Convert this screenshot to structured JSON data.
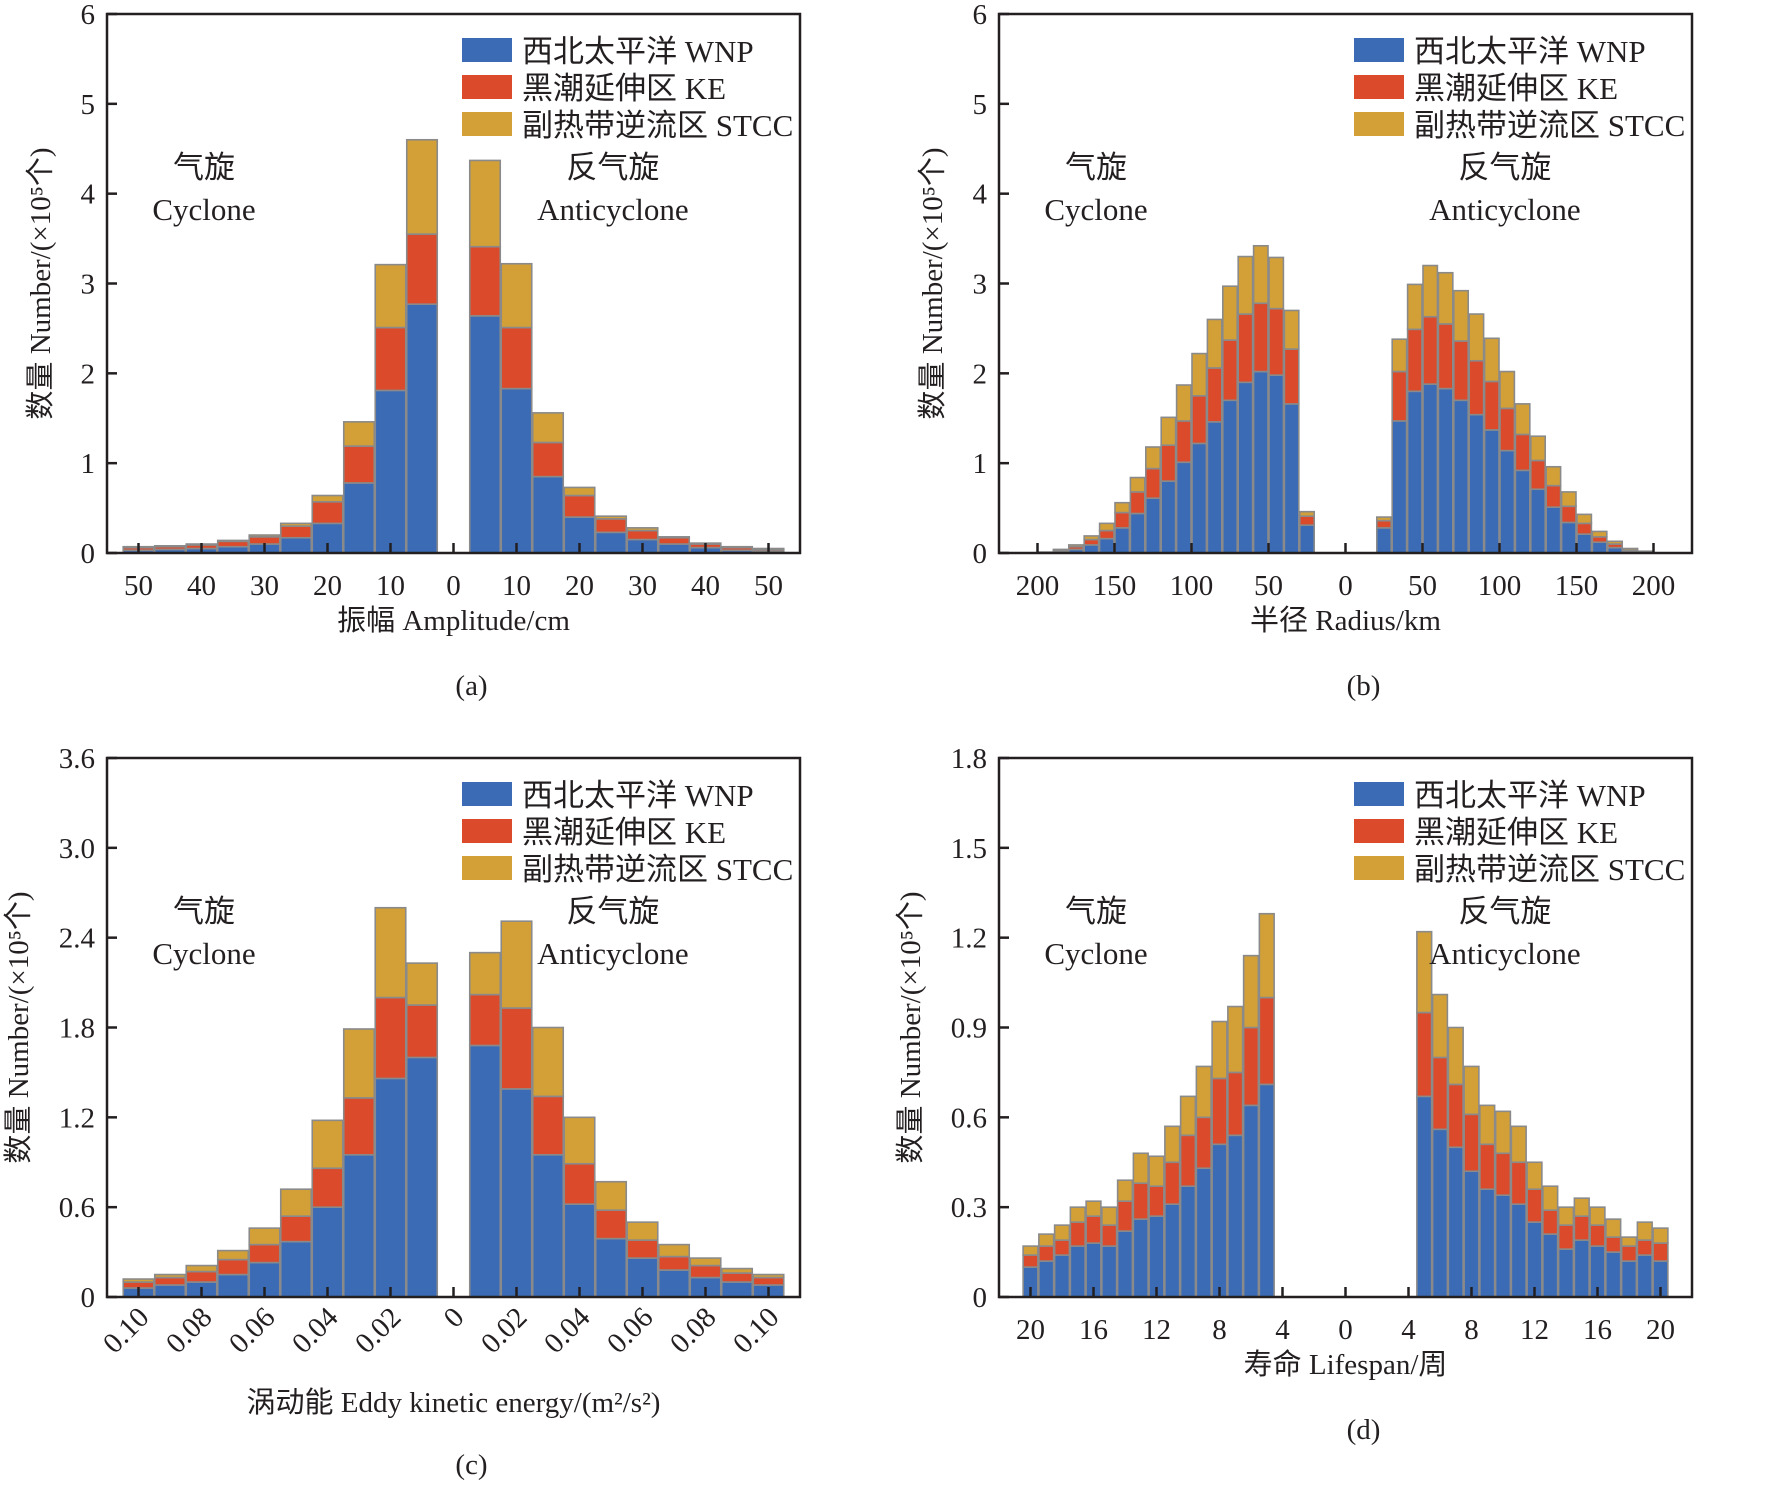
{
  "legend": [
    {
      "label": "西北太平洋 WNP",
      "color": "#3b6bb5"
    },
    {
      "label": "黑潮延伸区 KE",
      "color": "#db4a2b"
    },
    {
      "label": "副热带逆流区 STCC",
      "color": "#d3a037"
    }
  ],
  "edge_color": "#8a8a8a",
  "annotations": {
    "cyclone_cn": "气旋",
    "cyclone_en": "Cyclone",
    "anticyclone_cn": "反气旋",
    "anticyclone_en": "Anticyclone"
  },
  "ylabel": "数量 Number/(×10⁵个)",
  "chart_data": [
    {
      "id": "a",
      "type": "bar",
      "stacked": true,
      "caption": "(a)",
      "title": "",
      "xlabel": "振幅 Amplitude/cm",
      "ylabel": "数量 Number/(×10⁵个)",
      "ylim": [
        0,
        6
      ],
      "yticks": [
        0,
        1,
        2,
        3,
        4,
        5,
        6
      ],
      "ytick_labels": [
        "0",
        "1",
        "2",
        "3",
        "4",
        "5",
        "6"
      ],
      "xlim": [
        -55,
        55
      ],
      "xticks": [
        -50,
        -40,
        -30,
        -20,
        -10,
        0,
        10,
        20,
        30,
        40,
        50
      ],
      "xtick_labels": [
        "50",
        "40",
        "30",
        "20",
        "10",
        "0",
        "10",
        "20",
        "30",
        "40",
        "50"
      ],
      "xtick_rotate": false,
      "bin_width": 5,
      "legend_position": "top-right",
      "cyclone": {
        "x": [
          -50,
          -45,
          -40,
          -35,
          -30,
          -25,
          -20,
          -15,
          -10,
          -5
        ],
        "series": [
          {
            "name": "西北太平洋 WNP",
            "values": [
              0.03,
              0.04,
              0.05,
              0.07,
              0.1,
              0.17,
              0.33,
              0.78,
              1.81,
              2.77
            ]
          },
          {
            "name": "黑潮延伸区 KE",
            "values": [
              0.03,
              0.03,
              0.04,
              0.06,
              0.08,
              0.13,
              0.24,
              0.41,
              0.7,
              0.78
            ]
          },
          {
            "name": "副热带逆流区 STCC",
            "values": [
              0.01,
              0.01,
              0.01,
              0.01,
              0.02,
              0.03,
              0.07,
              0.27,
              0.7,
              1.05
            ]
          }
        ]
      },
      "anticyclone": {
        "x": [
          5,
          10,
          15,
          20,
          25,
          30,
          35,
          40,
          45,
          50
        ],
        "series": [
          {
            "name": "西北太平洋 WNP",
            "values": [
              2.64,
              1.83,
              0.85,
              0.4,
              0.23,
              0.15,
              0.1,
              0.06,
              0.03,
              0.02
            ]
          },
          {
            "name": "黑潮延伸区 KE",
            "values": [
              0.77,
              0.68,
              0.38,
              0.24,
              0.15,
              0.1,
              0.07,
              0.04,
              0.03,
              0.02
            ]
          },
          {
            "name": "副热带逆流区 STCC",
            "values": [
              0.96,
              0.71,
              0.33,
              0.09,
              0.03,
              0.03,
              0.01,
              0.01,
              0.01,
              0.01
            ]
          }
        ]
      }
    },
    {
      "id": "b",
      "type": "bar",
      "stacked": true,
      "caption": "(b)",
      "title": "",
      "xlabel": "半径 Radius/km",
      "ylabel": "数量 Number/(×10⁵个)",
      "ylim": [
        0,
        6
      ],
      "yticks": [
        0,
        1,
        2,
        3,
        4,
        5,
        6
      ],
      "ytick_labels": [
        "0",
        "1",
        "2",
        "3",
        "4",
        "5",
        "6"
      ],
      "xlim": [
        -225,
        225
      ],
      "xticks": [
        -200,
        -150,
        -100,
        -50,
        0,
        50,
        100,
        150,
        200
      ],
      "xtick_labels": [
        "200",
        "150",
        "100",
        "50",
        "0",
        "50",
        "100",
        "150",
        "200"
      ],
      "xtick_rotate": false,
      "bin_width": 10,
      "legend_position": "top-right",
      "cyclone": {
        "x": [
          -195,
          -185,
          -175,
          -165,
          -155,
          -145,
          -135,
          -125,
          -115,
          -105,
          -95,
          -85,
          -75,
          -65,
          -55,
          -45,
          -35
        ],
        "series": [
          {
            "name": "西北太平洋 WNP",
            "values": [
              0.01,
              0.02,
              0.04,
              0.09,
              0.16,
              0.28,
              0.44,
              0.61,
              0.8,
              1.01,
              1.22,
              1.46,
              1.7,
              1.9,
              2.02,
              1.98,
              1.66
            ]
          },
          {
            "name": "黑潮延伸区 KE",
            "values": [
              0.0,
              0.01,
              0.03,
              0.06,
              0.09,
              0.17,
              0.24,
              0.33,
              0.4,
              0.46,
              0.53,
              0.6,
              0.67,
              0.76,
              0.76,
              0.74,
              0.61
            ]
          },
          {
            "name": "副热带逆流区 STCC",
            "values": [
              0.0,
              0.01,
              0.02,
              0.04,
              0.08,
              0.11,
              0.16,
              0.24,
              0.31,
              0.4,
              0.47,
              0.54,
              0.6,
              0.64,
              0.64,
              0.57,
              0.43
            ]
          }
        ]
      },
      "extra_cyclone": {
        "x": -25,
        "values": [
          0.31,
          0.1,
          0.05
        ]
      },
      "anticyclone": {
        "x": [
          25,
          35,
          45,
          55,
          65,
          75,
          85,
          95,
          105,
          115,
          125,
          135,
          145,
          155,
          165,
          175,
          185,
          195
        ],
        "series": [
          {
            "name": "西北太平洋 WNP",
            "values": [
              0.28,
              1.47,
              1.8,
              1.88,
              1.83,
              1.7,
              1.54,
              1.37,
              1.14,
              0.92,
              0.71,
              0.51,
              0.34,
              0.21,
              0.12,
              0.06,
              0.02,
              0.01
            ]
          },
          {
            "name": "黑潮延伸区 KE",
            "values": [
              0.08,
              0.55,
              0.69,
              0.75,
              0.72,
              0.66,
              0.6,
              0.54,
              0.47,
              0.4,
              0.32,
              0.24,
              0.18,
              0.12,
              0.06,
              0.04,
              0.01,
              0.0
            ]
          },
          {
            "name": "副热带逆流区 STCC",
            "values": [
              0.04,
              0.36,
              0.5,
              0.57,
              0.57,
              0.56,
              0.52,
              0.48,
              0.41,
              0.34,
              0.27,
              0.21,
              0.16,
              0.1,
              0.06,
              0.03,
              0.02,
              0.01
            ]
          }
        ]
      }
    },
    {
      "id": "c",
      "type": "bar",
      "stacked": true,
      "caption": "(c)",
      "title": "",
      "xlabel": "涡动能 Eddy kinetic energy/(m²/s²)",
      "ylabel": "数量 Number/(×10⁵个)",
      "ylim": [
        0,
        3.6
      ],
      "yticks": [
        0,
        0.6,
        1.2,
        1.8,
        2.4,
        3.0,
        3.6
      ],
      "ytick_labels": [
        "0",
        "0.6",
        "1.2",
        "1.8",
        "2.4",
        "3.0",
        "3.6"
      ],
      "xlim": [
        -0.11,
        0.11
      ],
      "xticks": [
        -0.1,
        -0.08,
        -0.06,
        -0.04,
        -0.02,
        0,
        0.02,
        0.04,
        0.06,
        0.08,
        0.1
      ],
      "xtick_labels": [
        "0.10",
        "0.08",
        "0.06",
        "0.04",
        "0.02",
        "0",
        "0.02",
        "0.04",
        "0.06",
        "0.08",
        "0.10"
      ],
      "xtick_rotate": true,
      "bin_width": 0.01,
      "legend_position": "top-right",
      "cyclone": {
        "x": [
          -0.1,
          -0.09,
          -0.08,
          -0.07,
          -0.06,
          -0.05,
          -0.04,
          -0.03,
          -0.02,
          -0.01
        ],
        "series": [
          {
            "name": "西北太平洋 WNP",
            "values": [
              0.06,
              0.08,
              0.1,
              0.15,
              0.23,
              0.37,
              0.6,
              0.95,
              1.46,
              1.6
            ]
          },
          {
            "name": "黑潮延伸区 KE",
            "values": [
              0.04,
              0.05,
              0.07,
              0.1,
              0.12,
              0.17,
              0.26,
              0.38,
              0.54,
              0.35
            ]
          },
          {
            "name": "副热带逆流区 STCC",
            "values": [
              0.02,
              0.02,
              0.04,
              0.06,
              0.11,
              0.18,
              0.32,
              0.46,
              0.6,
              0.28
            ]
          }
        ]
      },
      "anticyclone": {
        "x": [
          0.01,
          0.02,
          0.03,
          0.04,
          0.05,
          0.06,
          0.07,
          0.08,
          0.09,
          0.1
        ],
        "series": [
          {
            "name": "西北太平洋 WNP",
            "values": [
              1.68,
              1.39,
              0.95,
              0.62,
              0.39,
              0.26,
              0.18,
              0.13,
              0.1,
              0.08
            ]
          },
          {
            "name": "黑潮延伸区 KE",
            "values": [
              0.34,
              0.54,
              0.39,
              0.27,
              0.19,
              0.12,
              0.09,
              0.08,
              0.06,
              0.05
            ]
          },
          {
            "name": "副热带逆流区 STCC",
            "values": [
              0.28,
              0.58,
              0.46,
              0.31,
              0.19,
              0.12,
              0.08,
              0.05,
              0.03,
              0.02
            ]
          }
        ]
      }
    },
    {
      "id": "d",
      "type": "bar",
      "stacked": true,
      "caption": "(d)",
      "title": "",
      "xlabel": "寿命 Lifespan/周",
      "ylabel": "数量 Number/(×10⁵个)",
      "ylim": [
        0,
        1.8
      ],
      "yticks": [
        0,
        0.3,
        0.6,
        0.9,
        1.2,
        1.5,
        1.8
      ],
      "ytick_labels": [
        "0",
        "0.3",
        "0.6",
        "0.9",
        "1.2",
        "1.5",
        "1.8"
      ],
      "xlim": [
        -22,
        22
      ],
      "xticks": [
        -20,
        -16,
        -12,
        -8,
        -4,
        0,
        4,
        8,
        12,
        16,
        20
      ],
      "xtick_labels": [
        "20",
        "16",
        "12",
        "8",
        "4",
        "0",
        "4",
        "8",
        "12",
        "16",
        "20"
      ],
      "xtick_rotate": false,
      "bin_width": 1,
      "legend_position": "top-right",
      "cyclone": {
        "x": [
          -20,
          -19,
          -18,
          -17,
          -16,
          -15,
          -14,
          -13,
          -12,
          -11,
          -10,
          -9,
          -8,
          -7,
          -6,
          -5
        ],
        "series": [
          {
            "name": "西北太平洋 WNP",
            "values": [
              0.1,
              0.12,
              0.14,
              0.17,
              0.18,
              0.17,
              0.22,
              0.26,
              0.27,
              0.31,
              0.37,
              0.43,
              0.51,
              0.54,
              0.64,
              0.71
            ]
          },
          {
            "name": "黑潮延伸区 KE",
            "values": [
              0.04,
              0.05,
              0.05,
              0.08,
              0.09,
              0.07,
              0.1,
              0.12,
              0.1,
              0.14,
              0.17,
              0.17,
              0.22,
              0.21,
              0.26,
              0.29
            ]
          },
          {
            "name": "副热带逆流区 STCC",
            "values": [
              0.03,
              0.04,
              0.05,
              0.05,
              0.05,
              0.06,
              0.07,
              0.1,
              0.1,
              0.12,
              0.13,
              0.17,
              0.19,
              0.22,
              0.24,
              0.28
            ]
          }
        ]
      },
      "anticyclone": {
        "x": [
          5,
          6,
          7,
          8,
          9,
          10,
          11,
          12,
          13,
          14,
          15,
          16,
          17,
          18,
          19,
          20
        ],
        "series": [
          {
            "name": "西北太平洋 WNP",
            "values": [
              0.67,
              0.56,
              0.5,
              0.42,
              0.36,
              0.34,
              0.31,
              0.25,
              0.21,
              0.16,
              0.19,
              0.17,
              0.15,
              0.12,
              0.14,
              0.12
            ]
          },
          {
            "name": "黑潮延伸区 KE",
            "values": [
              0.28,
              0.24,
              0.21,
              0.19,
              0.15,
              0.14,
              0.14,
              0.11,
              0.08,
              0.08,
              0.08,
              0.07,
              0.05,
              0.05,
              0.05,
              0.06
            ]
          },
          {
            "name": "副热带逆流区 STCC",
            "values": [
              0.27,
              0.21,
              0.19,
              0.16,
              0.13,
              0.14,
              0.12,
              0.09,
              0.08,
              0.06,
              0.06,
              0.06,
              0.06,
              0.03,
              0.06,
              0.05
            ]
          }
        ]
      }
    }
  ]
}
